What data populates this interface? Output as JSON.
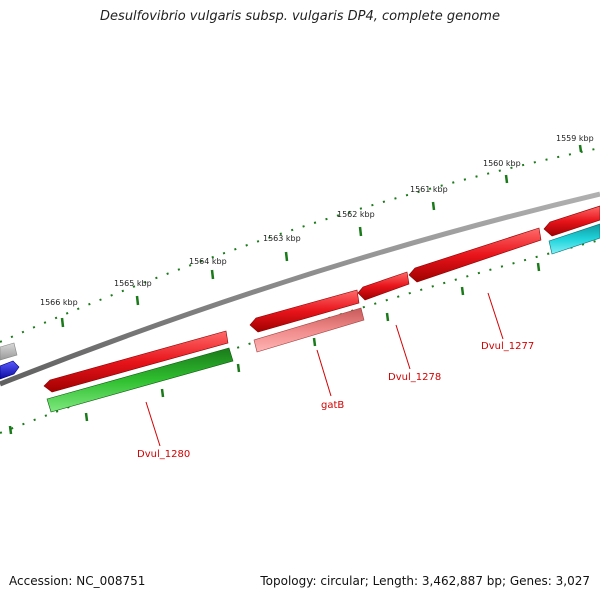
{
  "title": "Desulfovibrio vulgaris subsp. vulgaris DP4, complete genome",
  "footer": {
    "accession": "Accession: NC_008751",
    "summary": "Topology: circular; Length: 3,462,887 bp; Genes: 3,027"
  },
  "ruler_ticks": [
    {
      "label": "1559 kbp"
    },
    {
      "label": "1560 kbp"
    },
    {
      "label": "1561 kbp"
    },
    {
      "label": "1562 kbp"
    },
    {
      "label": "1563 kbp"
    },
    {
      "label": "1564 kbp"
    },
    {
      "label": "1565 kbp"
    },
    {
      "label": "1566 kbp"
    }
  ],
  "gene_labels": [
    {
      "text": "Dvul_1277"
    },
    {
      "text": "Dvul_1278"
    },
    {
      "text": "gatB"
    },
    {
      "text": "Dvul_1280"
    }
  ],
  "colors": {
    "forward_cds": "#e8141b",
    "reverse_cds_teal": "#1fd3db",
    "reverse_cds_pink": "#f08a8a",
    "reverse_cds_green": "#2fbf2f",
    "other_grey": "#b5b5b5",
    "other_blue": "#1414e6",
    "backbone": "#808080",
    "ruler": "#1a7a1a",
    "label": "#d40000"
  }
}
